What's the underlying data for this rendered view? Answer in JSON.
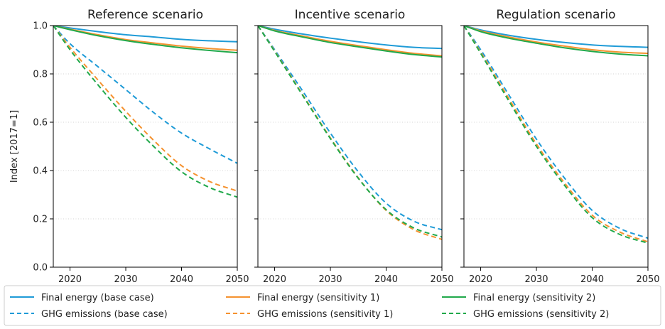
{
  "chart_data": {
    "type": "line",
    "ylabel": "Index [2017=1]",
    "xlim": [
      2017,
      2050
    ],
    "ylim": [
      0.0,
      1.0
    ],
    "shared_y": true,
    "grid": "horizontal-dotted",
    "x_ticks": [
      2020,
      2030,
      2040,
      2050
    ],
    "y_ticks": [
      0.0,
      0.2,
      0.4,
      0.6,
      0.8,
      1.0
    ],
    "y_tick_labels": [
      "0.0",
      "0.2",
      "0.4",
      "0.6",
      "0.8",
      "1.0"
    ],
    "x": [
      2017,
      2020,
      2025,
      2030,
      2035,
      2040,
      2045,
      2050
    ],
    "legend": {
      "placement": "bottom",
      "entries": [
        {
          "series": 0,
          "label": "Final energy (base case)"
        },
        {
          "series": 1,
          "label": "Final energy (sensitivity 1)"
        },
        {
          "series": 2,
          "label": "Final energy (sensitivity 2)"
        },
        {
          "series": 3,
          "label": "GHG emissions (base case)"
        },
        {
          "series": 4,
          "label": "GHG emissions (sensitivity 1)"
        },
        {
          "series": 5,
          "label": "GHG emissions (sensitivity 2)"
        }
      ]
    },
    "series_styles": [
      {
        "color": "#1f9bd7",
        "dash": "solid"
      },
      {
        "color": "#f5922f",
        "dash": "solid"
      },
      {
        "color": "#21a94b",
        "dash": "solid"
      },
      {
        "color": "#1f9bd7",
        "dash": "dashed"
      },
      {
        "color": "#f5922f",
        "dash": "dashed"
      },
      {
        "color": "#21a94b",
        "dash": "dashed"
      }
    ],
    "panels": [
      {
        "title": "Reference scenario",
        "series": [
          {
            "name": "Final energy (base case)",
            "values": [
              1.0,
              0.99,
              0.975,
              0.962,
              0.953,
              0.943,
              0.937,
              0.933
            ]
          },
          {
            "name": "Final energy (sensitivity 1)",
            "values": [
              1.0,
              0.985,
              0.962,
              0.942,
              0.928,
              0.915,
              0.905,
              0.898
            ]
          },
          {
            "name": "Final energy (sensitivity 2)",
            "values": [
              1.0,
              0.983,
              0.958,
              0.938,
              0.922,
              0.908,
              0.897,
              0.888
            ]
          },
          {
            "name": "GHG emissions (base case)",
            "values": [
              1.0,
              0.925,
              0.83,
              0.735,
              0.64,
              0.555,
              0.49,
              0.43
            ]
          },
          {
            "name": "GHG emissions (sensitivity 1)",
            "values": [
              1.0,
              0.91,
              0.775,
              0.645,
              0.525,
              0.42,
              0.355,
              0.315
            ]
          },
          {
            "name": "GHG emissions (sensitivity 2)",
            "values": [
              1.0,
              0.9,
              0.755,
              0.62,
              0.5,
              0.395,
              0.33,
              0.29
            ]
          }
        ]
      },
      {
        "title": "Incentive scenario",
        "series": [
          {
            "name": "Final energy (base case)",
            "values": [
              1.0,
              0.985,
              0.965,
              0.948,
              0.933,
              0.92,
              0.91,
              0.905
            ]
          },
          {
            "name": "Final energy (sensitivity 1)",
            "values": [
              1.0,
              0.98,
              0.957,
              0.935,
              0.917,
              0.9,
              0.885,
              0.875
            ]
          },
          {
            "name": "Final energy (sensitivity 2)",
            "values": [
              1.0,
              0.978,
              0.953,
              0.93,
              0.912,
              0.895,
              0.88,
              0.87
            ]
          },
          {
            "name": "GHG emissions (base case)",
            "values": [
              1.0,
              0.9,
              0.73,
              0.555,
              0.395,
              0.265,
              0.19,
              0.155
            ]
          },
          {
            "name": "GHG emissions (sensitivity 1)",
            "values": [
              1.0,
              0.895,
              0.715,
              0.535,
              0.37,
              0.235,
              0.155,
              0.115
            ]
          },
          {
            "name": "GHG emissions (sensitivity 2)",
            "values": [
              1.0,
              0.893,
              0.712,
              0.532,
              0.368,
              0.238,
              0.162,
              0.125
            ]
          }
        ]
      },
      {
        "title": "Regulation scenario",
        "series": [
          {
            "name": "Final energy (base case)",
            "values": [
              1.0,
              0.982,
              0.96,
              0.943,
              0.93,
              0.92,
              0.914,
              0.91
            ]
          },
          {
            "name": "Final energy (sensitivity 1)",
            "values": [
              1.0,
              0.978,
              0.953,
              0.932,
              0.915,
              0.9,
              0.89,
              0.885
            ]
          },
          {
            "name": "Final energy (sensitivity 2)",
            "values": [
              1.0,
              0.975,
              0.948,
              0.927,
              0.908,
              0.893,
              0.882,
              0.875
            ]
          },
          {
            "name": "GHG emissions (base case)",
            "values": [
              1.0,
              0.9,
              0.715,
              0.53,
              0.37,
              0.235,
              0.16,
              0.12
            ]
          },
          {
            "name": "GHG emissions (sensitivity 1)",
            "values": [
              1.0,
              0.89,
              0.7,
              0.51,
              0.35,
              0.215,
              0.145,
              0.105
            ]
          },
          {
            "name": "GHG emissions (sensitivity 2)",
            "values": [
              1.0,
              0.885,
              0.69,
              0.5,
              0.34,
              0.205,
              0.135,
              0.1
            ]
          }
        ]
      }
    ]
  }
}
